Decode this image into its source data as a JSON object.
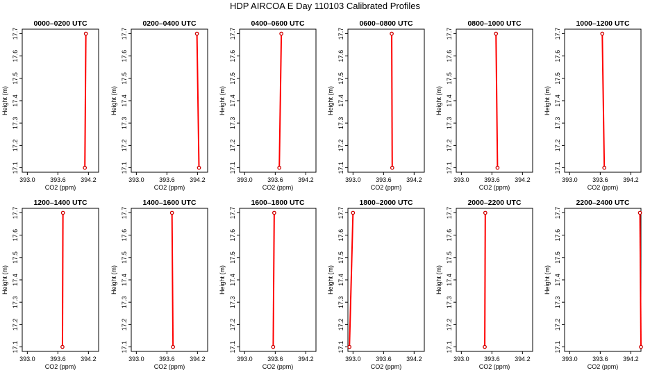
{
  "title": "HDP AIRCOA E  Day 110103  Calibrated Profiles",
  "chart_data": {
    "type": "line",
    "title": "HDP AIRCOA E  Day 110103  Calibrated Profiles",
    "xlabel": "CO2 (ppm)",
    "ylabel": "Height (m)",
    "xlim": [
      392.9,
      394.4
    ],
    "ylim": [
      17.08,
      17.72
    ],
    "xticks": [
      "393.0",
      "393.6",
      "394.2"
    ],
    "xtick_values": [
      393.0,
      393.6,
      394.2
    ],
    "yticks": [
      "17.1",
      "17.2",
      "17.3",
      "17.4",
      "17.5",
      "17.6",
      "17.7"
    ],
    "ytick_values": [
      17.1,
      17.2,
      17.3,
      17.4,
      17.5,
      17.6,
      17.7
    ],
    "line_color": "#ff0000",
    "marker_color": "#cc0000",
    "grid": false,
    "panels": [
      {
        "title": "0000–0200 UTC",
        "points": [
          {
            "x": 394.13,
            "y": 17.1
          },
          {
            "x": 394.15,
            "y": 17.7
          }
        ]
      },
      {
        "title": "0200–0400 UTC",
        "points": [
          {
            "x": 394.23,
            "y": 17.1
          },
          {
            "x": 394.19,
            "y": 17.7
          }
        ]
      },
      {
        "title": "0400–0600 UTC",
        "points": [
          {
            "x": 393.68,
            "y": 17.1
          },
          {
            "x": 393.72,
            "y": 17.7
          }
        ]
      },
      {
        "title": "0600–0800 UTC",
        "points": [
          {
            "x": 393.77,
            "y": 17.1
          },
          {
            "x": 393.76,
            "y": 17.7
          }
        ]
      },
      {
        "title": "0800–1000 UTC",
        "points": [
          {
            "x": 393.71,
            "y": 17.1
          },
          {
            "x": 393.68,
            "y": 17.7
          }
        ]
      },
      {
        "title": "1000–1200 UTC",
        "points": [
          {
            "x": 393.68,
            "y": 17.1
          },
          {
            "x": 393.64,
            "y": 17.7
          }
        ]
      },
      {
        "title": "1200–1400 UTC",
        "points": [
          {
            "x": 393.69,
            "y": 17.1
          },
          {
            "x": 393.7,
            "y": 17.7
          }
        ]
      },
      {
        "title": "1400–1600 UTC",
        "points": [
          {
            "x": 393.72,
            "y": 17.1
          },
          {
            "x": 393.7,
            "y": 17.7
          }
        ]
      },
      {
        "title": "1600–1800 UTC",
        "points": [
          {
            "x": 393.56,
            "y": 17.1
          },
          {
            "x": 393.58,
            "y": 17.7
          }
        ]
      },
      {
        "title": "1800–2000 UTC",
        "points": [
          {
            "x": 392.93,
            "y": 17.1
          },
          {
            "x": 393.0,
            "y": 17.7
          }
        ]
      },
      {
        "title": "2000–2200 UTC",
        "points": [
          {
            "x": 393.46,
            "y": 17.1
          },
          {
            "x": 393.47,
            "y": 17.7
          }
        ]
      },
      {
        "title": "2200–2400 UTC",
        "points": [
          {
            "x": 394.4,
            "y": 17.1
          },
          {
            "x": 394.38,
            "y": 17.7
          }
        ]
      }
    ]
  }
}
